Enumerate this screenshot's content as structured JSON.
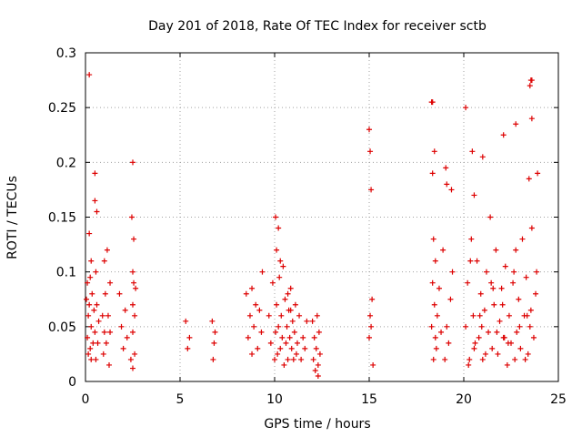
{
  "chart_data": {
    "type": "scatter",
    "title": "Day 201 of 2018, Rate Of TEC Index for receiver sctb",
    "xlabel": "GPS time / hours",
    "ylabel": "ROTI / TECUs",
    "xlim": [
      0,
      25
    ],
    "ylim": [
      0,
      0.3
    ],
    "x_ticks": [
      "0",
      "5",
      "10",
      "15",
      "20",
      "25"
    ],
    "y_ticks": [
      "0",
      "0.05",
      "0.1",
      "0.15",
      "0.2",
      "0.25",
      "0.3"
    ],
    "grid": true,
    "marker": "plus",
    "marker_color": "#dd0000",
    "series": [
      {
        "name": "ROTI",
        "x": [
          0.05,
          0.1,
          0.1,
          0.15,
          0.15,
          0.2,
          0.2,
          0.25,
          0.25,
          0.3,
          0.3,
          0.3,
          0.35,
          0.4,
          0.45,
          0.5,
          0.5,
          0.55,
          0.55,
          0.6,
          0.6,
          0.65,
          0.7,
          0.9,
          0.95,
          1.0,
          1.0,
          1.05,
          1.1,
          1.15,
          1.2,
          1.25,
          1.3,
          1.3,
          1.8,
          1.9,
          2.0,
          2.1,
          2.2,
          2.4,
          2.45,
          2.5,
          2.5,
          2.5,
          2.55,
          2.6,
          2.6,
          2.65,
          2.5,
          2.55,
          5.3,
          5.4,
          5.5,
          6.7,
          6.8,
          6.75,
          6.85,
          8.5,
          8.6,
          8.7,
          8.8,
          8.8,
          8.9,
          9.0,
          9.1,
          9.2,
          9.3,
          9.35,
          9.7,
          9.8,
          9.9,
          10.0,
          10.05,
          10.1,
          10.1,
          10.15,
          10.2,
          10.25,
          10.3,
          10.35,
          10.4,
          10.5,
          10.55,
          10.6,
          10.65,
          10.7,
          10.75,
          10.8,
          10.85,
          10.9,
          10.95,
          11.0,
          11.05,
          11.1,
          11.15,
          11.2,
          11.3,
          11.4,
          11.5,
          11.6,
          11.7,
          10.05,
          10.2,
          10.3,
          10.45,
          10.7,
          10.85,
          12.0,
          12.05,
          12.1,
          12.15,
          12.2,
          12.25,
          12.3,
          12.35,
          12.4,
          12.3,
          15.0,
          15.05,
          15.1,
          15.15,
          15.0,
          15.05,
          15.1,
          15.2,
          18.3,
          18.35,
          18.4,
          18.4,
          18.45,
          18.5,
          18.5,
          18.55,
          18.6,
          18.7,
          18.8,
          18.9,
          19.0,
          19.1,
          19.2,
          19.3,
          19.4,
          18.35,
          18.45,
          19.05,
          19.35,
          20.1,
          20.2,
          20.3,
          20.4,
          20.5,
          20.6,
          20.7,
          20.8,
          20.9,
          21.0,
          21.1,
          21.2,
          21.3,
          21.4,
          21.5,
          21.6,
          21.7,
          21.8,
          21.9,
          22.0,
          22.1,
          22.2,
          22.3,
          22.4,
          22.5,
          22.6,
          22.7,
          22.8,
          22.9,
          23.0,
          23.1,
          23.2,
          23.3,
          23.4,
          23.5,
          23.6,
          23.7,
          23.8,
          20.25,
          20.55,
          20.85,
          21.15,
          21.45,
          21.75,
          22.05,
          22.35,
          22.65,
          22.95,
          23.25,
          23.55,
          20.35,
          20.95,
          21.55,
          22.15,
          22.75,
          23.35,
          23.85,
          0.2,
          0.5,
          2.5,
          18.3,
          18.35,
          20.1,
          20.45,
          20.55,
          22.1,
          22.75,
          23.45,
          23.5,
          23.55,
          23.6,
          23.6,
          19.1,
          21.0,
          23.9
        ],
        "y": [
          0.075,
          0.04,
          0.09,
          0.025,
          0.06,
          0.135,
          0.07,
          0.095,
          0.03,
          0.05,
          0.11,
          0.02,
          0.08,
          0.035,
          0.065,
          0.045,
          0.165,
          0.1,
          0.02,
          0.07,
          0.155,
          0.035,
          0.055,
          0.06,
          0.025,
          0.045,
          0.11,
          0.08,
          0.035,
          0.12,
          0.06,
          0.015,
          0.045,
          0.09,
          0.08,
          0.05,
          0.03,
          0.065,
          0.04,
          0.02,
          0.15,
          0.1,
          0.07,
          0.045,
          0.13,
          0.06,
          0.025,
          0.085,
          0.012,
          0.09,
          0.055,
          0.03,
          0.04,
          0.055,
          0.035,
          0.02,
          0.045,
          0.08,
          0.04,
          0.06,
          0.025,
          0.085,
          0.05,
          0.07,
          0.03,
          0.065,
          0.045,
          0.1,
          0.06,
          0.035,
          0.09,
          0.02,
          0.045,
          0.12,
          0.07,
          0.025,
          0.05,
          0.095,
          0.03,
          0.06,
          0.04,
          0.015,
          0.075,
          0.035,
          0.05,
          0.02,
          0.065,
          0.04,
          0.085,
          0.03,
          0.055,
          0.02,
          0.045,
          0.07,
          0.025,
          0.035,
          0.06,
          0.02,
          0.04,
          0.03,
          0.055,
          0.15,
          0.14,
          0.11,
          0.105,
          0.08,
          0.065,
          0.055,
          0.02,
          0.04,
          0.01,
          0.03,
          0.06,
          0.015,
          0.045,
          0.025,
          0.005,
          0.23,
          0.21,
          0.175,
          0.075,
          0.04,
          0.06,
          0.05,
          0.015,
          0.05,
          0.09,
          0.13,
          0.02,
          0.07,
          0.04,
          0.11,
          0.03,
          0.06,
          0.085,
          0.045,
          0.12,
          0.02,
          0.05,
          0.035,
          0.075,
          0.1,
          0.255,
          0.21,
          0.195,
          0.175,
          0.05,
          0.09,
          0.02,
          0.13,
          0.06,
          0.035,
          0.11,
          0.04,
          0.08,
          0.02,
          0.065,
          0.1,
          0.045,
          0.15,
          0.03,
          0.07,
          0.12,
          0.025,
          0.055,
          0.085,
          0.04,
          0.105,
          0.015,
          0.06,
          0.035,
          0.09,
          0.02,
          0.045,
          0.075,
          0.03,
          0.13,
          0.06,
          0.095,
          0.025,
          0.05,
          0.14,
          0.04,
          0.08,
          0.015,
          0.03,
          0.06,
          0.025,
          0.09,
          0.045,
          0.07,
          0.035,
          0.1,
          0.05,
          0.02,
          0.065,
          0.11,
          0.05,
          0.085,
          0.04,
          0.12,
          0.06,
          0.1,
          0.28,
          0.19,
          0.2,
          0.255,
          0.19,
          0.25,
          0.21,
          0.17,
          0.225,
          0.235,
          0.185,
          0.27,
          0.275,
          0.24,
          0.275,
          0.18,
          0.205,
          0.19
        ]
      }
    ]
  }
}
